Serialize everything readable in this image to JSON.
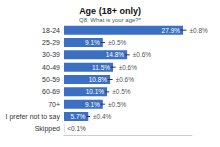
{
  "chart_data": {
    "type": "bar",
    "title": "Age (18+ only)",
    "subtitle": "Q8: What is your age?*",
    "orientation": "horizontal",
    "categories": [
      "18-24",
      "25-29",
      "30-39",
      "40-49",
      "50-59",
      "60-69",
      "70+",
      "I prefer not to say",
      "Skipped"
    ],
    "values": [
      27.9,
      9.1,
      14.8,
      11.5,
      10.8,
      10.1,
      9.1,
      5.7,
      0.05
    ],
    "value_labels": [
      "27.9%",
      "9.1%",
      "14.8%",
      "11.5%",
      "10.8%",
      "10.1%",
      "9.1%",
      "5.7%",
      "<0.1%"
    ],
    "errors": [
      0.8,
      0.5,
      0.6,
      0.6,
      0.6,
      0.5,
      0.5,
      0.4,
      null
    ],
    "error_labels": [
      "±0.8%",
      "±0.5%",
      "±0.6%",
      "±0.6%",
      "±0.6%",
      "±0.5%",
      "±0.5%",
      "±0.4%",
      null
    ],
    "color": "#3a6fc4",
    "xlim": [
      0,
      30
    ],
    "data_labels": true,
    "tick_labels": "y",
    "grid": false
  }
}
